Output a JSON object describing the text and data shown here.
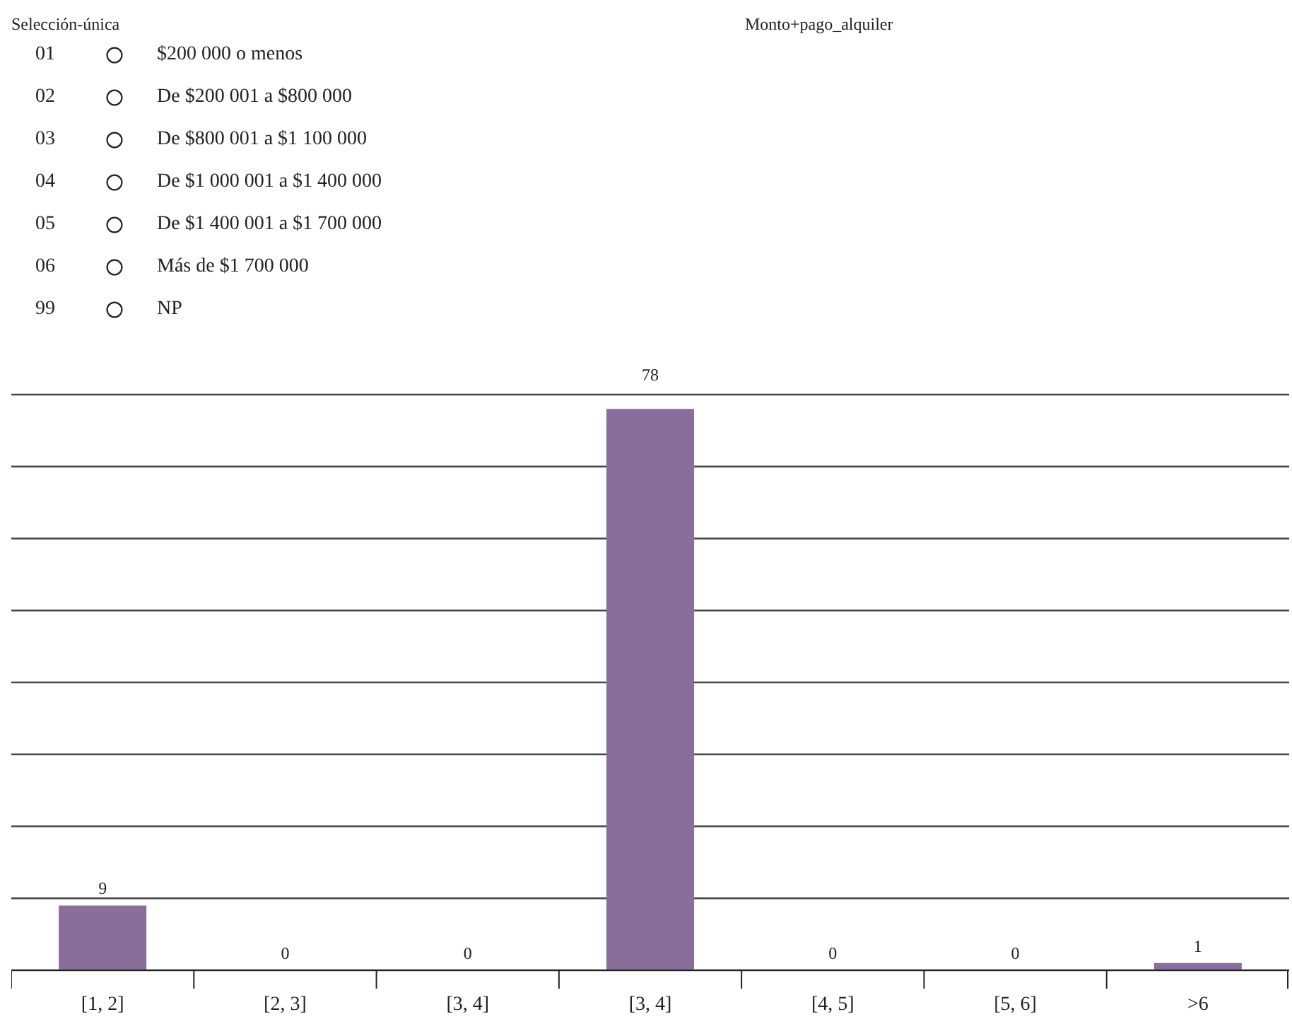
{
  "chart_data": {
    "type": "bar",
    "title": "Monto+pago_alquiler",
    "annotations": [
      "Selección-única",
      "01 $200 000 o menos",
      "02 De $200 001 a $800 000",
      "03 De $800 001 a $1 100 000",
      "04 De $1 000 001 a $1 400 000",
      "05 De $1 400 001 a $1 700 000",
      "06 Más de $1 700 000",
      "99 NP"
    ],
    "categories": [
      "[1, 2]",
      "[2, 3]",
      "[3, 4]",
      "[3, 4]",
      "[4, 5]",
      "[5, 6]",
      ">6"
    ],
    "values": [
      9,
      0,
      0,
      78,
      0,
      0,
      1
    ],
    "color": "#896d9b",
    "ylim": [
      0,
      80
    ],
    "yticks": [
      {
        "value": 0,
        "label": null
      },
      {
        "value": 10,
        "label": null
      },
      {
        "value": 20,
        "label": null
      },
      {
        "value": 30,
        "label": null
      },
      {
        "value": 40,
        "label": null
      },
      {
        "value": 50,
        "label": null
      },
      {
        "value": 60,
        "label": null
      },
      {
        "value": 70,
        "label": null
      },
      {
        "value": 80,
        "label": null
      }
    ],
    "grid": "y",
    "data_labels": true,
    "tick_labels": "x",
    "legend": false
  }
}
